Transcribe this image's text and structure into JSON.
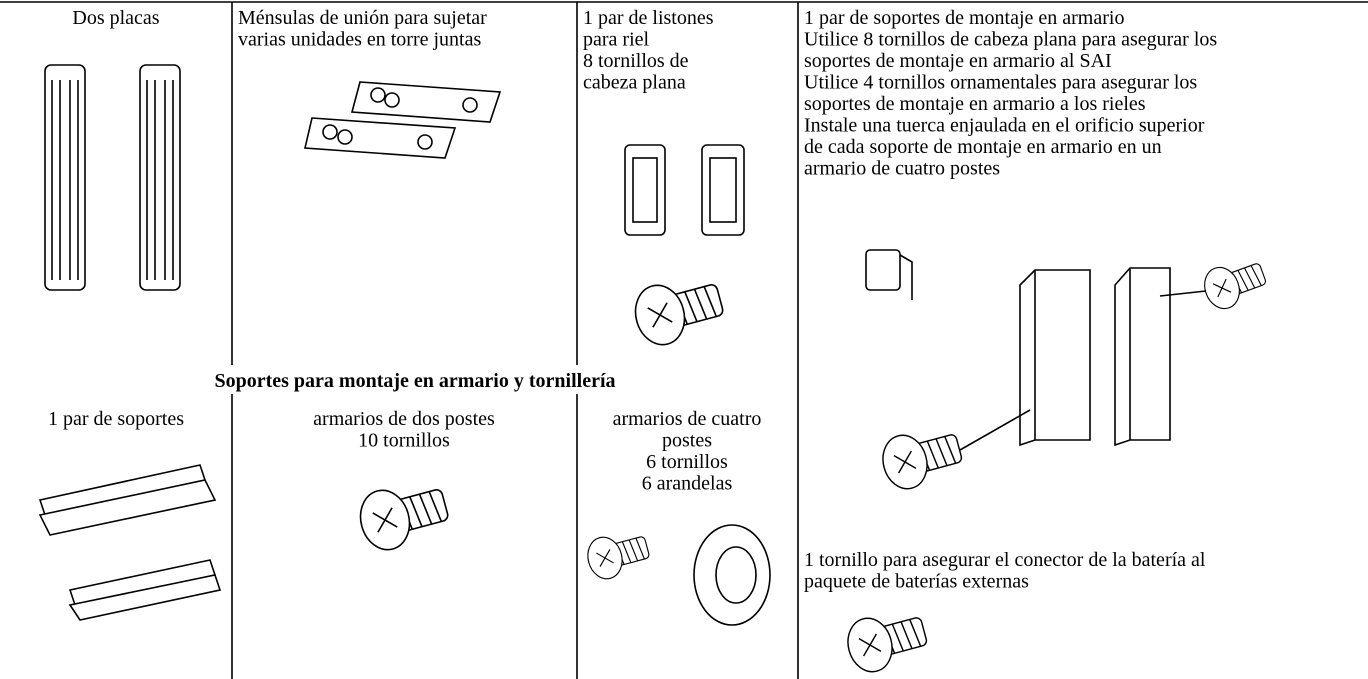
{
  "top_row": [
    {
      "lines": [
        "Dos placas"
      ]
    },
    {
      "lines": [
        "Ménsulas de unión para sujetar",
        "varias unidades en torre juntas"
      ]
    },
    {
      "lines": [
        "1 par de listones",
        "para riel",
        "8 tornillos de",
        "cabeza plana"
      ]
    }
  ],
  "right_cell": {
    "lines": [
      "1 par de soportes de montaje en armario",
      "Utilice 8 tornillos de cabeza plana para asegurar los",
      "soportes de montaje en armario al SAI",
      "Utilice 4 tornillos ornamentales para asegurar los",
      "soportes de montaje en armario a los rieles",
      "Instale una tuerca enjaulada en el orificio superior",
      "de cada soporte de montaje en armario en un",
      "armario de cuatro postes"
    ],
    "battery_lines": [
      "1 tornillo para asegurar el conector de la batería al",
      "paquete de baterías externas"
    ]
  },
  "section_title": "Soportes para montaje en armario y tornillería",
  "bottom_row": [
    {
      "lines": [
        "1 par de soportes"
      ]
    },
    {
      "lines": [
        "armarios de dos postes",
        "10 tornillos"
      ]
    },
    {
      "lines": [
        "armarios de cuatro",
        "postes",
        "6 tornillos",
        "6 arandelas"
      ]
    }
  ]
}
